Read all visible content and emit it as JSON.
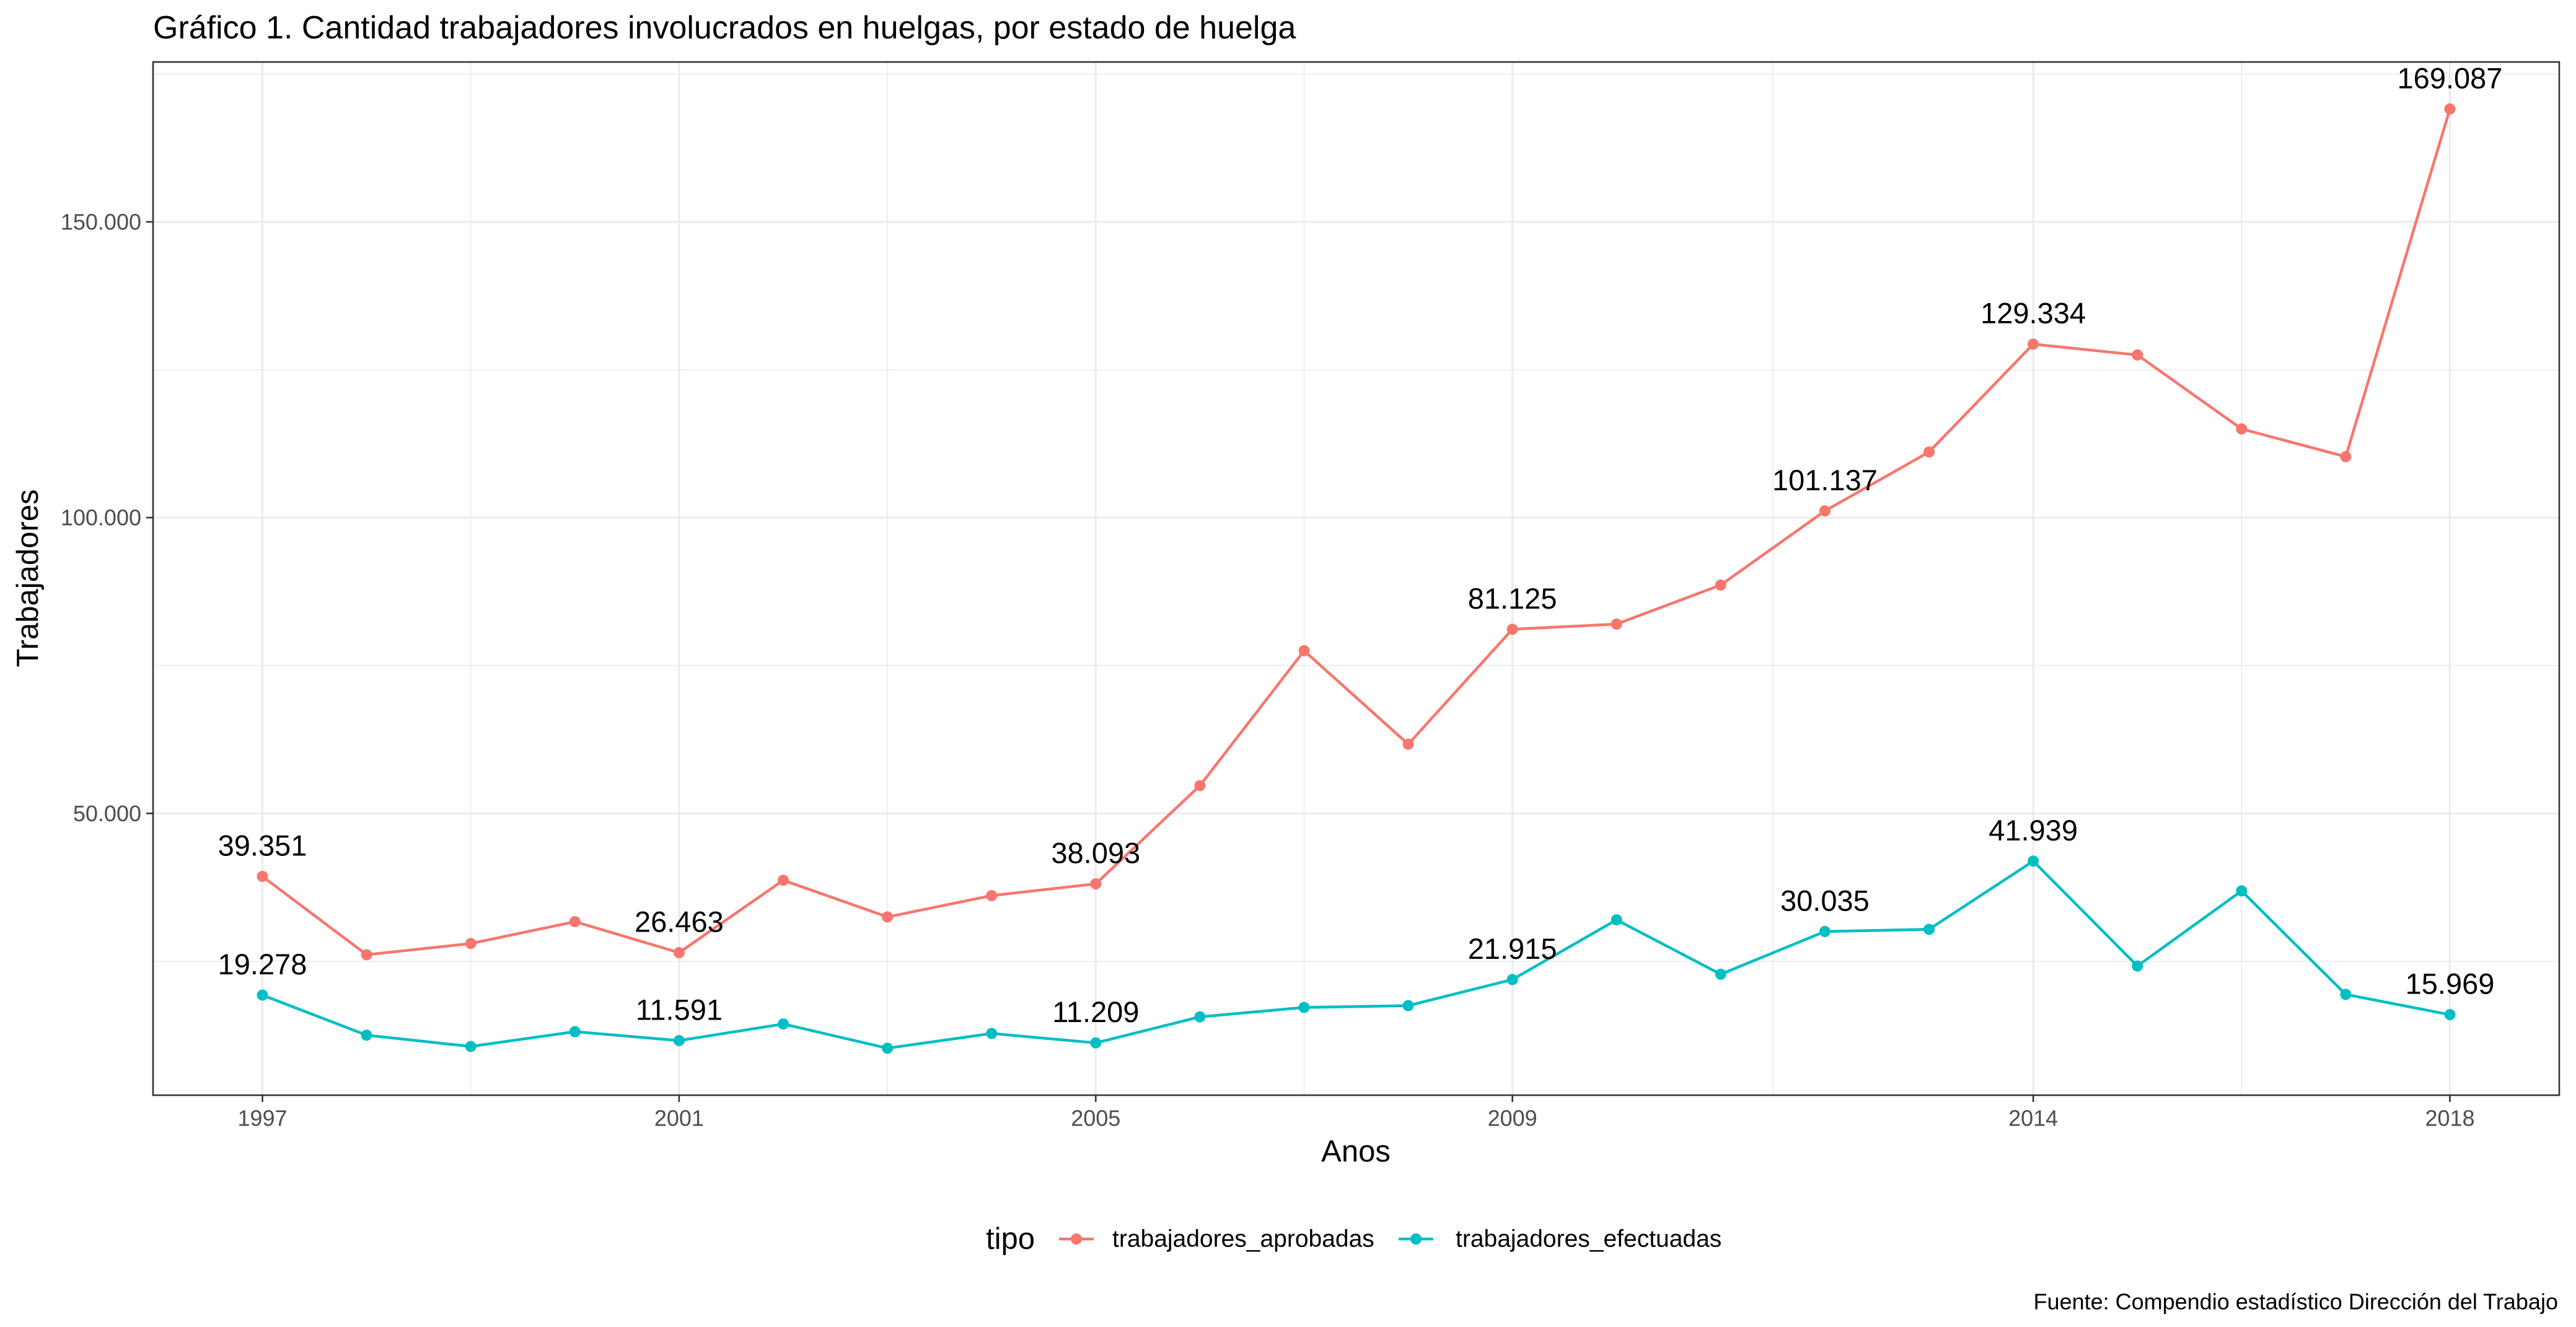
{
  "chart_data": {
    "type": "line",
    "title": "Gráfico 1. Cantidad trabajadores involucrados en huelgas, por estado de huelga",
    "xlabel": "Anos",
    "ylabel": "Trabajadores",
    "caption": "Fuente: Compendio estadístico Dirección del Trabajo",
    "x": [
      1997,
      1998,
      1999,
      2000,
      2001,
      2002,
      2003,
      2004,
      2005,
      2006,
      2007,
      2008,
      2009,
      2010,
      2011,
      2012,
      2013,
      2014,
      2015,
      2016,
      2017,
      2018
    ],
    "xlim": [
      1995.95,
      2019.05
    ],
    "ylim": [
      2361,
      177026
    ],
    "xticks": [
      1997,
      2001,
      2005,
      2009,
      2014,
      2018
    ],
    "yticks": [
      {
        "value": 50000,
        "label": "50.000"
      },
      {
        "value": 100000,
        "label": "100.000"
      },
      {
        "value": 150000,
        "label": "150.000"
      }
    ],
    "grid": true,
    "markers": true,
    "legend": {
      "title": "tipo",
      "position": "bottom"
    },
    "series": [
      {
        "name": "trabajadores_aprobadas",
        "color": "#F8766D",
        "values": [
          39351,
          26100,
          28000,
          31700,
          26463,
          38700,
          32500,
          36100,
          38093,
          54700,
          77500,
          61700,
          81125,
          82000,
          88600,
          101137,
          111100,
          129334,
          127500,
          115000,
          110300,
          169087
        ],
        "point_labels": [
          {
            "year": 1997,
            "text": "39.351"
          },
          {
            "year": 2001,
            "text": "26.463"
          },
          {
            "year": 2005,
            "text": "38.093"
          },
          {
            "year": 2009,
            "text": "81.125"
          },
          {
            "year": 2012,
            "text": "101.137"
          },
          {
            "year": 2014,
            "text": "129.334"
          },
          {
            "year": 2018,
            "text": "169.087"
          }
        ]
      },
      {
        "name": "trabajadores_efectuadas",
        "color": "#00BFC4",
        "values": [
          19278,
          12500,
          10600,
          13100,
          11591,
          14400,
          10300,
          12800,
          11209,
          15600,
          17200,
          17500,
          21915,
          32000,
          22800,
          30035,
          30400,
          41939,
          24200,
          36900,
          19400,
          15969
        ],
        "point_labels": [
          {
            "year": 1997,
            "text": "19.278"
          },
          {
            "year": 2001,
            "text": "11.591"
          },
          {
            "year": 2005,
            "text": "11.209"
          },
          {
            "year": 2009,
            "text": "21.915"
          },
          {
            "year": 2012,
            "text": "30.035"
          },
          {
            "year": 2014,
            "text": "41.939"
          },
          {
            "year": 2018,
            "text": "15.969"
          }
        ]
      }
    ]
  }
}
